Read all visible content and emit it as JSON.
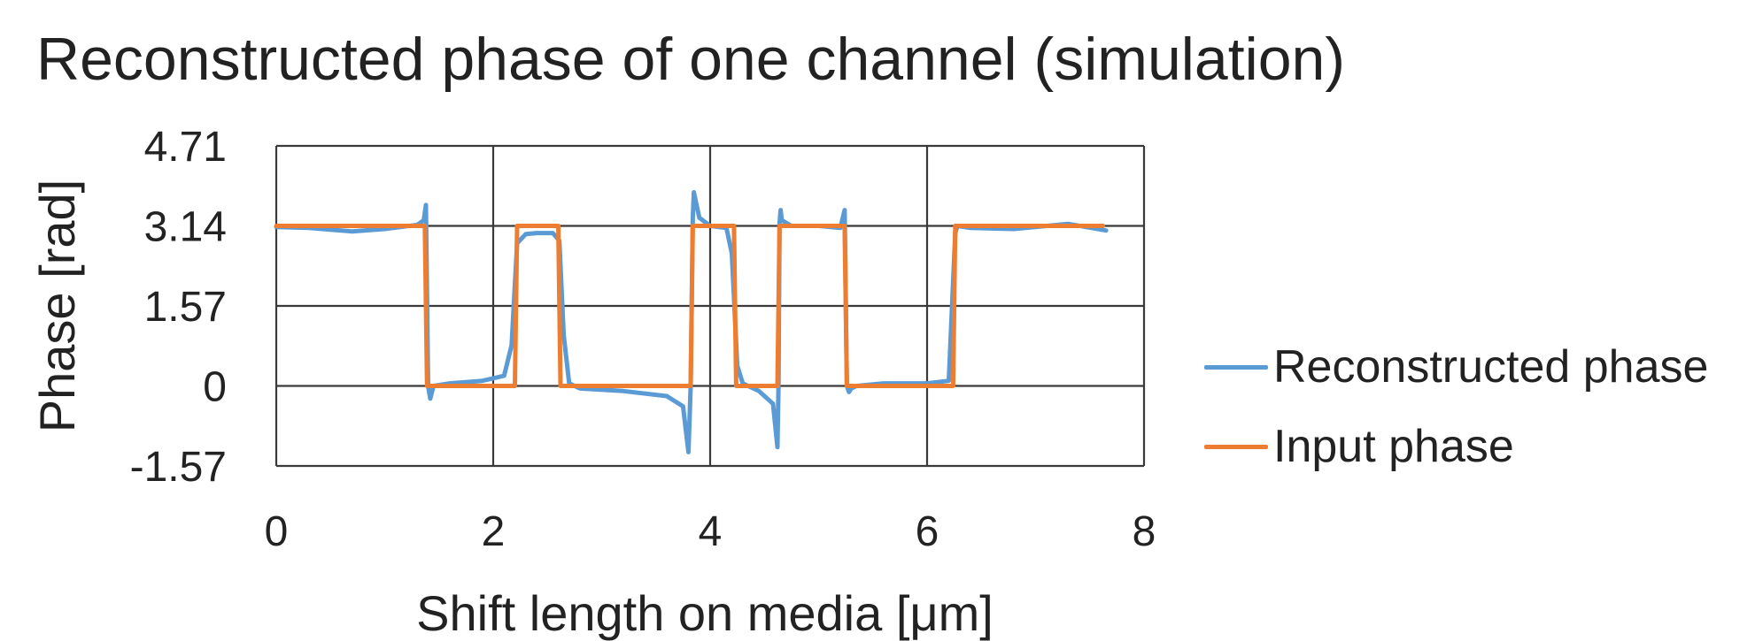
{
  "chart_data": {
    "type": "line",
    "title": "Reconstructed phase of one channel (simulation)",
    "xlabel": "Shift length on media [μm]",
    "ylabel": "Phase [rad]",
    "xlim": [
      0,
      8
    ],
    "ylim": [
      -1.57,
      4.71
    ],
    "xticks": [
      "0",
      "2",
      "4",
      "6",
      "8"
    ],
    "yticks": [
      "4.71",
      "3.14",
      "1.57",
      "0",
      "-1.57"
    ],
    "grid": true,
    "legend_position": "right",
    "series": [
      {
        "name": "Reconstructed phase",
        "color": "#5b9bd5",
        "x": [
          0,
          0.3,
          0.7,
          1.0,
          1.3,
          1.36,
          1.38,
          1.4,
          1.42,
          1.45,
          1.6,
          1.9,
          2.1,
          2.17,
          2.22,
          2.3,
          2.4,
          2.55,
          2.61,
          2.65,
          2.7,
          2.8,
          3.2,
          3.6,
          3.75,
          3.8,
          3.82,
          3.84,
          3.85,
          3.9,
          4.0,
          4.15,
          4.2,
          4.25,
          4.3,
          4.45,
          4.58,
          4.62,
          4.63,
          4.64,
          4.65,
          4.66,
          4.75,
          5.0,
          5.2,
          5.24,
          5.26,
          5.28,
          5.3,
          5.35,
          5.6,
          6.0,
          6.2,
          6.26,
          6.28,
          6.4,
          6.8,
          7.3,
          7.65
        ],
        "y": [
          3.12,
          3.1,
          3.03,
          3.08,
          3.16,
          3.25,
          3.55,
          0.0,
          -0.25,
          0.0,
          0.05,
          0.1,
          0.2,
          0.8,
          2.8,
          2.98,
          3.0,
          3.0,
          2.85,
          1.0,
          0.05,
          -0.05,
          -0.1,
          -0.2,
          -0.4,
          -1.3,
          0.0,
          3.3,
          3.8,
          3.3,
          3.14,
          3.1,
          2.6,
          0.4,
          0.05,
          -0.1,
          -0.35,
          -1.2,
          0.0,
          3.2,
          3.45,
          3.25,
          3.14,
          3.14,
          3.1,
          3.45,
          0.0,
          -0.12,
          -0.05,
          0.0,
          0.05,
          0.05,
          0.1,
          3.0,
          3.14,
          3.1,
          3.08,
          3.18,
          3.05
        ]
      },
      {
        "name": "Input phase",
        "color": "#ed7d31",
        "x": [
          0,
          1.37,
          1.39,
          2.2,
          2.22,
          2.6,
          2.62,
          3.82,
          3.84,
          4.22,
          4.24,
          4.62,
          4.64,
          5.24,
          5.26,
          6.24,
          6.26,
          7.62
        ],
        "y": [
          3.14,
          3.14,
          0,
          0,
          3.14,
          3.14,
          0,
          0,
          3.14,
          3.14,
          0,
          0,
          3.14,
          3.14,
          0,
          0,
          3.14,
          3.14
        ]
      }
    ]
  }
}
